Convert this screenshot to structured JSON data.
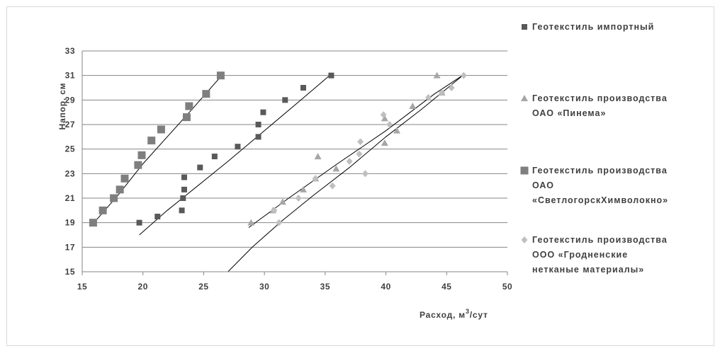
{
  "chart_data": {
    "type": "scatter",
    "title": "",
    "xlabel": {
      "prefix": "Расход, м",
      "sup": "3",
      "suffix": "/сут"
    },
    "ylabel": "Напор, см",
    "xlim": [
      15,
      50
    ],
    "ylim": [
      15,
      33
    ],
    "x_ticks": [
      "15",
      "20",
      "25",
      "30",
      "35",
      "40",
      "45",
      "50"
    ],
    "y_ticks": [
      "15",
      "17",
      "19",
      "21",
      "23",
      "25",
      "27",
      "29",
      "31",
      "33"
    ],
    "grid": "horizontal",
    "legend_position": "right",
    "series": [
      {
        "name": [
          "Геотекстиль импортный"
        ],
        "marker": "square",
        "color": "#595959",
        "points": [
          [
            19.7,
            19
          ],
          [
            21.2,
            19.5
          ],
          [
            23.2,
            20
          ],
          [
            23.3,
            21
          ],
          [
            23.4,
            21.7
          ],
          [
            23.4,
            22.7
          ],
          [
            24.7,
            23.5
          ],
          [
            25.9,
            24.4
          ],
          [
            27.8,
            25.2
          ],
          [
            29.5,
            26
          ],
          [
            29.5,
            27
          ],
          [
            29.9,
            28
          ],
          [
            31.7,
            29
          ],
          [
            33.2,
            30
          ],
          [
            35.5,
            31
          ]
        ],
        "trend": [
          [
            19.7,
            18
          ],
          [
            22,
            20
          ],
          [
            24.5,
            22
          ],
          [
            27,
            24
          ],
          [
            30,
            26.5
          ],
          [
            33,
            29
          ],
          [
            35.6,
            31.2
          ]
        ]
      },
      {
        "name": [
          "Геотекстиль производства",
          "ОАО «Пинема»"
        ],
        "marker": "triangle",
        "color": "#a6a6a6",
        "points": [
          [
            28.9,
            19
          ],
          [
            30.7,
            20
          ],
          [
            31.5,
            20.7
          ],
          [
            33.2,
            21.7
          ],
          [
            34.2,
            22.6
          ],
          [
            34.4,
            24.4
          ],
          [
            35.9,
            23.4
          ],
          [
            39.9,
            25.5
          ],
          [
            39.9,
            27.5
          ],
          [
            40.9,
            26.5
          ],
          [
            42.2,
            28.5
          ],
          [
            44.2,
            31
          ],
          [
            44.6,
            29.6
          ]
        ],
        "trend": [
          [
            28.7,
            18.6
          ],
          [
            32,
            21
          ],
          [
            36,
            23.8
          ],
          [
            40,
            26.5
          ],
          [
            44,
            29.5
          ],
          [
            46.3,
            31
          ]
        ]
      },
      {
        "name": [
          "Геотекстиль производства",
          "ОАО",
          "«СветлогорскХимволокно»"
        ],
        "marker": "square-large",
        "color": "#7f7f7f",
        "points": [
          [
            15.9,
            19
          ],
          [
            16.7,
            20
          ],
          [
            17.6,
            21
          ],
          [
            18.1,
            21.7
          ],
          [
            18.5,
            22.6
          ],
          [
            19.6,
            23.7
          ],
          [
            19.9,
            24.5
          ],
          [
            20.7,
            25.7
          ],
          [
            21.5,
            26.6
          ],
          [
            23.6,
            27.6
          ],
          [
            23.8,
            28.5
          ],
          [
            25.2,
            29.5
          ],
          [
            26.4,
            31
          ]
        ],
        "trend": [
          [
            15.8,
            18.8
          ],
          [
            18,
            21.3
          ],
          [
            20,
            23.8
          ],
          [
            22,
            26
          ],
          [
            24,
            28.2
          ],
          [
            26.4,
            30.9
          ]
        ]
      },
      {
        "name": [
          "Геотекстиль производства",
          "ООО «Гродненские",
          "нетканые материалы»"
        ],
        "marker": "diamond",
        "color": "#bfbfbf",
        "points": [
          [
            30.8,
            20
          ],
          [
            31.2,
            19
          ],
          [
            32.8,
            21
          ],
          [
            34.2,
            22.6
          ],
          [
            35.6,
            22
          ],
          [
            37.0,
            24
          ],
          [
            37.8,
            24.6
          ],
          [
            37.9,
            25.6
          ],
          [
            38.3,
            23
          ],
          [
            39.8,
            27.8
          ],
          [
            40.3,
            27
          ],
          [
            43.5,
            29.2
          ],
          [
            44.6,
            29.6
          ],
          [
            45.4,
            30
          ],
          [
            46.4,
            31
          ]
        ],
        "trend": [
          [
            27,
            15
          ],
          [
            29,
            17
          ],
          [
            31.5,
            19.2
          ],
          [
            34,
            21.2
          ],
          [
            37,
            23.5
          ],
          [
            40,
            26
          ],
          [
            43,
            28.3
          ],
          [
            46.2,
            30.9
          ]
        ]
      }
    ]
  }
}
